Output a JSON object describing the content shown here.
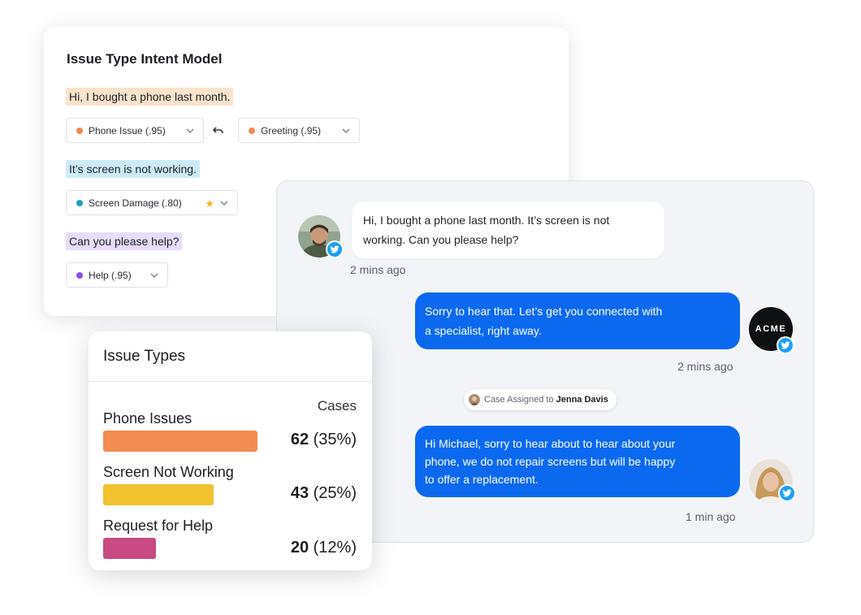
{
  "intent_model": {
    "title": "Issue Type Intent Model",
    "segments": [
      {
        "text": "Hi, I bought a phone last month.",
        "highlight": "#fbe3cc",
        "tags": [
          {
            "label": "Phone Issue (.95)",
            "dot": "#f0894c"
          },
          {
            "label": "Greeting (.95)",
            "dot": "#f0894c"
          }
        ]
      },
      {
        "text": "It’s screen is not working.",
        "highlight": "#cdebf6",
        "tags": [
          {
            "label": "Screen Damage (.80)",
            "dot": "#1fa0bd",
            "starred": true
          }
        ]
      },
      {
        "text": "Can you please help?",
        "highlight": "#e7dcfb",
        "tags": [
          {
            "label": "Help (.95)",
            "dot": "#8a4ff0"
          }
        ]
      }
    ],
    "icons": {
      "chevron": "chevron-down-icon",
      "undo": "undo-arrow-icon",
      "star": "star-icon"
    }
  },
  "chat": {
    "messages": [
      {
        "direction": "inbound",
        "lines": [
          "Hi, I bought a phone last month. It’s screen is not",
          "working. Can you please help?"
        ],
        "time": "2 mins ago"
      },
      {
        "direction": "outbound",
        "lines": [
          "Sorry to hear that. Let’s get you connected with",
          "a specialist, right away."
        ],
        "time": "2 mins ago"
      },
      {
        "direction": "outbound",
        "lines": [
          "Hi Michael,  sorry to hear about to hear about your",
          "phone, we do not repair screens but will be happy",
          "to offer a replacement."
        ],
        "time": "1 min ago"
      }
    ],
    "brand_avatar": "ACME",
    "assignment": {
      "prefix": "Case Assigned to",
      "agent": "Jenna Davis"
    },
    "colors": {
      "outbound": "#0b69f0",
      "twitter": "#1da1f2"
    }
  },
  "issue_types": {
    "title": "Issue Types",
    "column_header": "Cases",
    "rows": [
      {
        "label": "Phone Issues",
        "count": "62",
        "percent": "(35%)",
        "share": 0.35,
        "color": "#f38b52"
      },
      {
        "label": "Screen Not Working",
        "count": "43",
        "percent": "(25%)",
        "share": 0.25,
        "color": "#f2c12e"
      },
      {
        "label": "Request for Help",
        "count": "20",
        "percent": "(12%)",
        "share": 0.12,
        "color": "#c94a82"
      }
    ]
  }
}
